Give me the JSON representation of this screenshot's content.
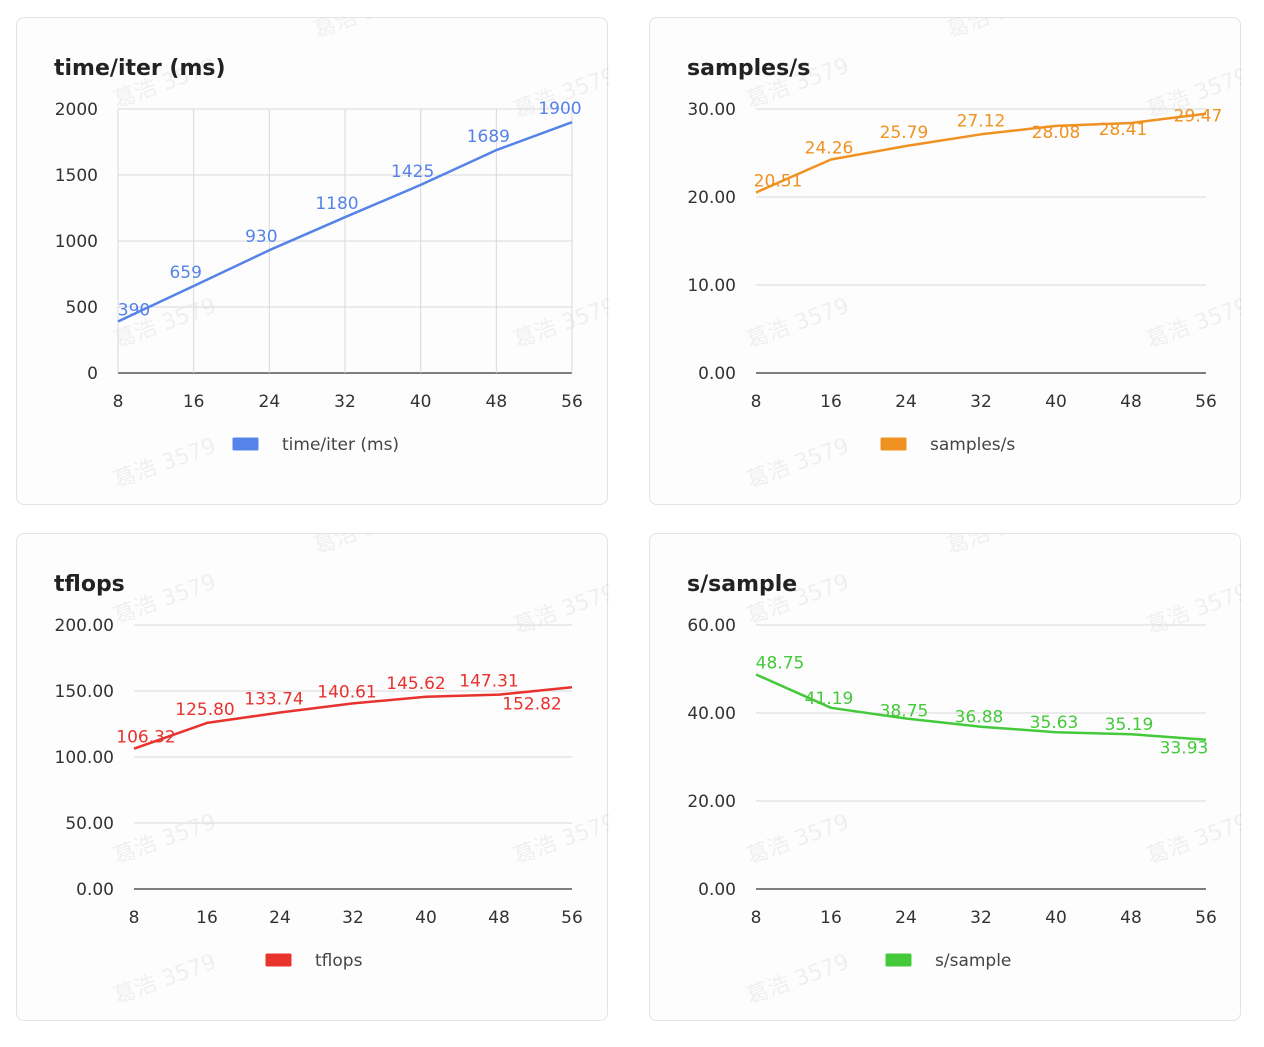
{
  "watermark": "葛浩 3579",
  "chart_data": [
    {
      "type": "line",
      "title": "time/iter (ms)",
      "x": [
        8,
        16,
        24,
        32,
        40,
        48,
        56
      ],
      "xticks": [
        "8",
        "16",
        "24",
        "32",
        "40",
        "48",
        "56"
      ],
      "series": [
        {
          "name": "time/iter (ms)",
          "color": "#5583e8",
          "points": [
            [
              8,
              390
            ],
            [
              16,
              659
            ],
            [
              24,
              930
            ],
            [
              32,
              1180
            ],
            [
              40,
              1425
            ],
            [
              48,
              1689
            ],
            [
              56,
              1900
            ]
          ],
          "labels": [
            "390",
            "659",
            "930",
            "1180",
            "1425",
            "1689",
            "1900"
          ]
        }
      ],
      "ylim": [
        0,
        2000
      ],
      "yticks": [
        "0",
        "500",
        "1000",
        "1500",
        "2000"
      ],
      "grid": "both",
      "legend": "bottom"
    },
    {
      "type": "line",
      "title": "samples/s",
      "x": [
        8,
        16,
        24,
        32,
        40,
        48,
        56
      ],
      "xticks": [
        "8",
        "16",
        "24",
        "32",
        "40",
        "48",
        "56"
      ],
      "series": [
        {
          "name": "samples/s",
          "color": "#ef9221",
          "points": [
            [
              8,
              20.51
            ],
            [
              16,
              24.26
            ],
            [
              24,
              25.79
            ],
            [
              32,
              27.12
            ],
            [
              40,
              28.08
            ],
            [
              48,
              28.41
            ],
            [
              56,
              29.47
            ]
          ],
          "labels": [
            "20.51",
            "24.26",
            "25.79",
            "27.12",
            "28.08",
            "28.41",
            "29.47"
          ]
        }
      ],
      "ylim": [
        0,
        30
      ],
      "yticks": [
        "0.00",
        "10.00",
        "20.00",
        "30.00"
      ],
      "grid": "horizontal",
      "legend": "bottom"
    },
    {
      "type": "line",
      "title": "tflops",
      "x": [
        8,
        16,
        24,
        32,
        40,
        48,
        56
      ],
      "xticks": [
        "8",
        "16",
        "24",
        "32",
        "40",
        "48",
        "56"
      ],
      "series": [
        {
          "name": "tflops",
          "color": "#e8322e",
          "points": [
            [
              8,
              106.32
            ],
            [
              16,
              125.8
            ],
            [
              24,
              133.74
            ],
            [
              32,
              140.61
            ],
            [
              40,
              145.62
            ],
            [
              48,
              147.31
            ],
            [
              56,
              152.82
            ]
          ],
          "labels": [
            "106.32",
            "125.80",
            "133.74",
            "140.61",
            "145.62",
            "147.31",
            "152.82"
          ]
        }
      ],
      "ylim": [
        0,
        200
      ],
      "yticks": [
        "0.00",
        "50.00",
        "100.00",
        "150.00",
        "200.00"
      ],
      "grid": "horizontal",
      "legend": "bottom"
    },
    {
      "type": "line",
      "title": "s/sample",
      "x": [
        8,
        16,
        24,
        32,
        40,
        48,
        56
      ],
      "xticks": [
        "8",
        "16",
        "24",
        "32",
        "40",
        "48",
        "56"
      ],
      "series": [
        {
          "name": "s/sample",
          "color": "#44c93a",
          "points": [
            [
              8,
              48.75
            ],
            [
              16,
              41.19
            ],
            [
              24,
              38.75
            ],
            [
              32,
              36.88
            ],
            [
              40,
              35.63
            ],
            [
              48,
              35.19
            ],
            [
              56,
              33.93
            ]
          ],
          "labels": [
            "48.75",
            "41.19",
            "38.75",
            "36.88",
            "35.63",
            "35.19",
            "33.93"
          ]
        }
      ],
      "ylim": [
        0,
        60
      ],
      "yticks": [
        "0.00",
        "20.00",
        "40.00",
        "60.00"
      ],
      "grid": "horizontal",
      "legend": "bottom"
    }
  ]
}
